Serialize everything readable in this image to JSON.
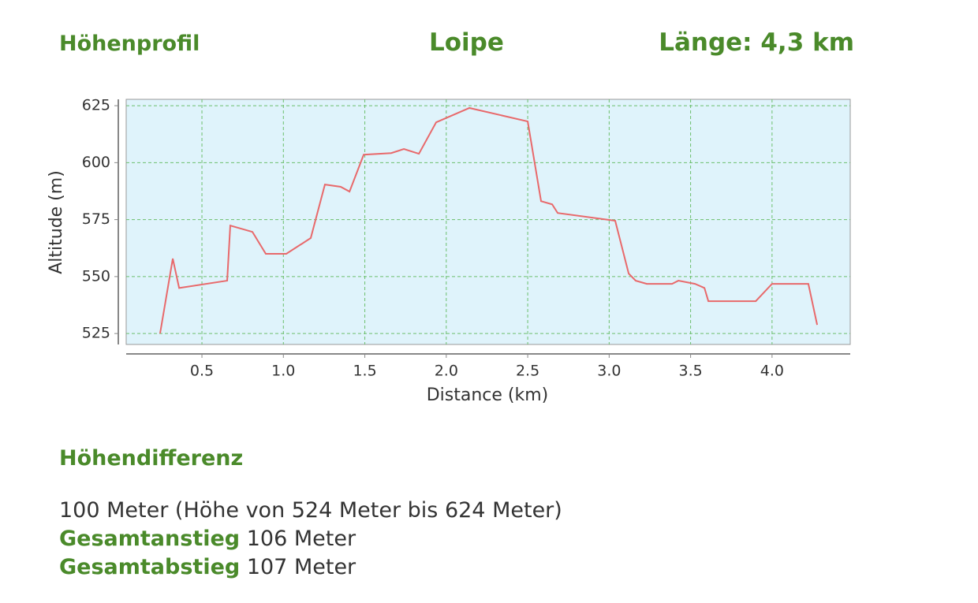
{
  "header": {
    "title": "Höhenprofil",
    "trail": "Loipe",
    "length": "Länge: 4,3 km"
  },
  "chart_data": {
    "type": "line",
    "x_label": "Distance (km)",
    "y_label": "Altitude (m)",
    "x": [
      0.243,
      0.321,
      0.36,
      0.655,
      0.674,
      0.81,
      0.892,
      1.018,
      1.168,
      1.255,
      1.352,
      1.406,
      1.493,
      1.662,
      1.74,
      1.832,
      1.938,
      2.142,
      2.5,
      2.582,
      2.65,
      2.684,
      3.037,
      3.12,
      3.163,
      3.231,
      3.386,
      3.425,
      3.527,
      3.585,
      3.609,
      3.9,
      4.0,
      4.223,
      4.277
    ],
    "series": [
      {
        "color": "#e8696b",
        "values": [
          525,
          557.9,
          545,
          548.2,
          572.4,
          569.6,
          560,
          560,
          566.9,
          590.4,
          589.4,
          587.3,
          603.5,
          604.2,
          606,
          603.9,
          617.7,
          624,
          618.1,
          583.1,
          581.7,
          577.9,
          574.5,
          551.3,
          548.2,
          546.8,
          546.8,
          548.2,
          546.8,
          545,
          539.2,
          539.2,
          546.8,
          546.8,
          528.8
        ]
      }
    ],
    "xlim": [
      0.035,
      4.48
    ],
    "ylim": [
      520.2,
      627.8
    ],
    "xticks": [
      0.5,
      {
        "value": 1,
        "label": "1.0"
      },
      1.5,
      {
        "value": 2,
        "label": "2.0"
      },
      2.5,
      {
        "value": 3,
        "label": "3.0"
      },
      3.5,
      {
        "value": 4,
        "label": "4.0"
      }
    ],
    "yticks": [
      525,
      550,
      575,
      600,
      625
    ],
    "grid": true,
    "background": "#dff3fb",
    "grid_color": "#6cbf6c"
  },
  "summary": {
    "title": "Höhendifferenz",
    "difference": "100 Meter (Höhe von 524 Meter bis 624 Meter)",
    "ascent": {
      "label": "Gesamtanstieg",
      "text": "106 Meter"
    },
    "descent": {
      "label": "Gesamtabstieg",
      "text": "107 Meter"
    }
  }
}
